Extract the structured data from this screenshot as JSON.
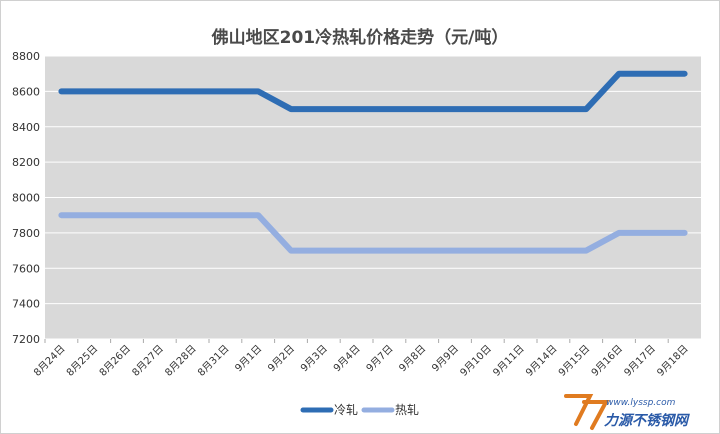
{
  "chart_data": {
    "type": "line",
    "title": "佛山地区201冷热轧价格走势（元/吨）",
    "categories": [
      "8月24日",
      "8月25日",
      "8月26日",
      "8月27日",
      "8月28日",
      "8月31日",
      "9月1日",
      "9月2日",
      "9月3日",
      "9月4日",
      "9月7日",
      "9月8日",
      "9月9日",
      "9月10日",
      "9月11日",
      "9月14日",
      "9月15日",
      "9月16日",
      "9月17日",
      "9月18日"
    ],
    "yticks": [
      7200,
      7400,
      7600,
      7800,
      8000,
      8200,
      8400,
      8600,
      8800
    ],
    "ylim": [
      7200,
      8800
    ],
    "grid": true,
    "legend_position": "bottom",
    "series": [
      {
        "name": "冷轧",
        "color": "#2e6db4",
        "values": [
          8600,
          8600,
          8600,
          8600,
          8600,
          8600,
          8600,
          8500,
          8500,
          8500,
          8500,
          8500,
          8500,
          8500,
          8500,
          8500,
          8500,
          8700,
          8700,
          8700
        ]
      },
      {
        "name": "热轧",
        "color": "#94aee0",
        "values": [
          7900,
          7900,
          7900,
          7900,
          7900,
          7900,
          7900,
          7700,
          7700,
          7700,
          7700,
          7700,
          7700,
          7700,
          7700,
          7700,
          7700,
          7800,
          7800,
          7800
        ]
      }
    ]
  },
  "watermark": {
    "brand": "力源不锈钢网",
    "url": "www.lyssp.com"
  }
}
